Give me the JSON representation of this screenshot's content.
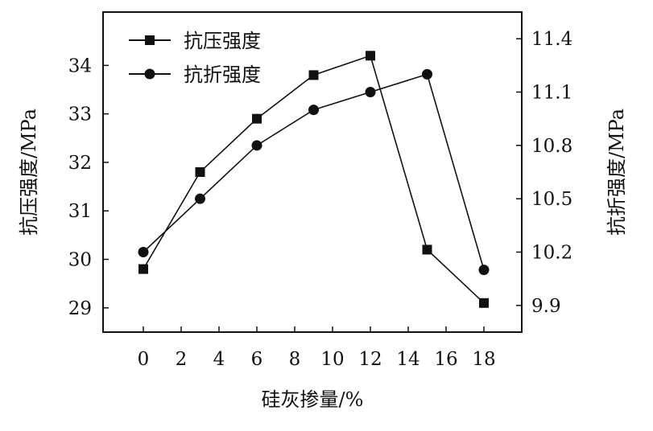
{
  "chart_data": {
    "type": "line",
    "x": [
      0,
      3,
      6,
      9,
      12,
      15,
      18
    ],
    "xticks": [
      "0",
      "2",
      "4",
      "6",
      "8",
      "10",
      "12",
      "14",
      "16",
      "18"
    ],
    "xlabel": "硅灰掺量/%",
    "ylabel_left": "抗压强度/MPa",
    "ylabel_right": "抗折强度/MPa",
    "ylim_left": [
      28.5,
      35.1
    ],
    "ylim_right": [
      9.75,
      11.55
    ],
    "yticks_left": [
      "29",
      "30",
      "31",
      "32",
      "33",
      "34"
    ],
    "yticks_right": [
      "9.9",
      "10.2",
      "10.5",
      "10.8",
      "11.1",
      "11.4"
    ],
    "series": [
      {
        "name": "抗压强度",
        "axis": "left",
        "marker": "square",
        "values": [
          29.8,
          31.8,
          32.9,
          33.8,
          34.2,
          30.2,
          29.1
        ]
      },
      {
        "name": "抗折强度",
        "axis": "right",
        "marker": "circle",
        "values": [
          10.2,
          10.5,
          10.8,
          11.0,
          11.1,
          11.2,
          10.1
        ]
      }
    ],
    "legend_position": "top-left",
    "grid": false
  }
}
